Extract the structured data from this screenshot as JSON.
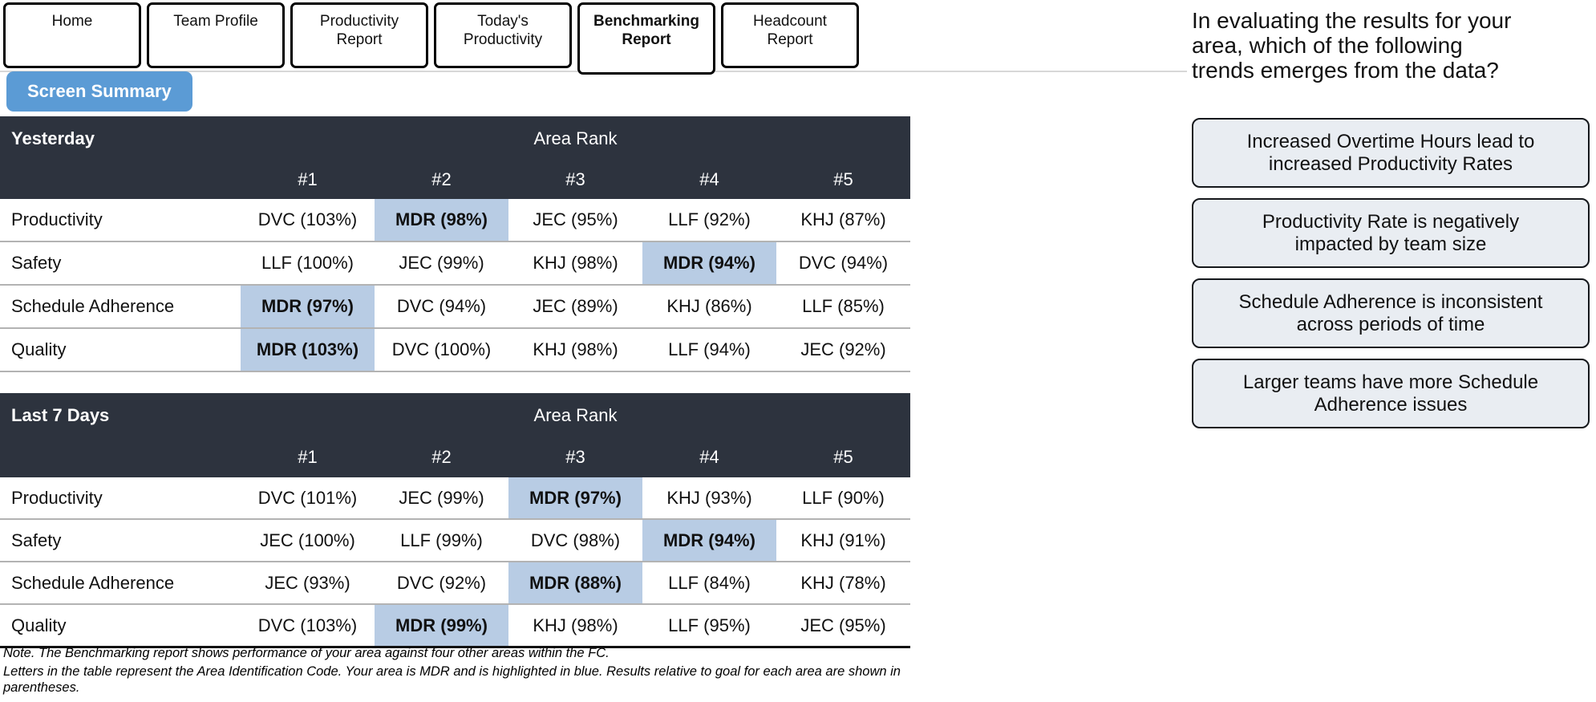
{
  "tabs": [
    {
      "label": "Home",
      "active": false
    },
    {
      "label": "Team Profile",
      "active": false
    },
    {
      "label": "Productivity Report",
      "active": false
    },
    {
      "label": "Today's Productivity",
      "active": false
    },
    {
      "label": "Benchmarking Report",
      "active": true
    },
    {
      "label": "Headcount Report",
      "active": false
    }
  ],
  "screen_summary_label": "Screen Summary",
  "tables": [
    {
      "title": "Yesterday",
      "area_rank_label": "Area Rank",
      "rank_headers": [
        "#1",
        "#2",
        "#3",
        "#4",
        "#5"
      ],
      "rows": [
        {
          "metric": "Productivity",
          "cells": [
            {
              "text": "DVC (103%)",
              "highlight": false
            },
            {
              "text": "MDR (98%)",
              "highlight": true
            },
            {
              "text": "JEC (95%)",
              "highlight": false
            },
            {
              "text": "LLF (92%)",
              "highlight": false
            },
            {
              "text": "KHJ (87%)",
              "highlight": false
            }
          ]
        },
        {
          "metric": "Safety",
          "cells": [
            {
              "text": "LLF (100%)",
              "highlight": false
            },
            {
              "text": "JEC (99%)",
              "highlight": false
            },
            {
              "text": "KHJ (98%)",
              "highlight": false
            },
            {
              "text": "MDR (94%)",
              "highlight": true
            },
            {
              "text": "DVC (94%)",
              "highlight": false
            }
          ]
        },
        {
          "metric": "Schedule Adherence",
          "cells": [
            {
              "text": "MDR (97%)",
              "highlight": true
            },
            {
              "text": "DVC (94%)",
              "highlight": false
            },
            {
              "text": "JEC (89%)",
              "highlight": false
            },
            {
              "text": "KHJ (86%)",
              "highlight": false
            },
            {
              "text": "LLF (85%)",
              "highlight": false
            }
          ]
        },
        {
          "metric": "Quality",
          "cells": [
            {
              "text": "MDR (103%)",
              "highlight": true
            },
            {
              "text": "DVC (100%)",
              "highlight": false
            },
            {
              "text": "KHJ (98%)",
              "highlight": false
            },
            {
              "text": "LLF (94%)",
              "highlight": false
            },
            {
              "text": "JEC (92%)",
              "highlight": false
            }
          ]
        }
      ]
    },
    {
      "title": "Last 7 Days",
      "area_rank_label": "Area Rank",
      "rank_headers": [
        "#1",
        "#2",
        "#3",
        "#4",
        "#5"
      ],
      "rows": [
        {
          "metric": "Productivity",
          "cells": [
            {
              "text": "DVC (101%)",
              "highlight": false
            },
            {
              "text": "JEC (99%)",
              "highlight": false
            },
            {
              "text": "MDR (97%)",
              "highlight": true
            },
            {
              "text": "KHJ (93%)",
              "highlight": false
            },
            {
              "text": "LLF (90%)",
              "highlight": false
            }
          ]
        },
        {
          "metric": "Safety",
          "cells": [
            {
              "text": "JEC (100%)",
              "highlight": false
            },
            {
              "text": "LLF (99%)",
              "highlight": false
            },
            {
              "text": "DVC (98%)",
              "highlight": false
            },
            {
              "text": "MDR (94%)",
              "highlight": true
            },
            {
              "text": "KHJ (91%)",
              "highlight": false
            }
          ]
        },
        {
          "metric": "Schedule Adherence",
          "cells": [
            {
              "text": "JEC (93%)",
              "highlight": false
            },
            {
              "text": "DVC (92%)",
              "highlight": false
            },
            {
              "text": "MDR (88%)",
              "highlight": true
            },
            {
              "text": "LLF (84%)",
              "highlight": false
            },
            {
              "text": "KHJ (78%)",
              "highlight": false
            }
          ]
        },
        {
          "metric": "Quality",
          "cells": [
            {
              "text": "DVC (103%)",
              "highlight": false
            },
            {
              "text": "MDR (99%)",
              "highlight": true
            },
            {
              "text": "KHJ (98%)",
              "highlight": false
            },
            {
              "text": "LLF (95%)",
              "highlight": false
            },
            {
              "text": "JEC (95%)",
              "highlight": false
            }
          ]
        }
      ]
    }
  ],
  "note": {
    "line1": "Note. The Benchmarking report shows performance of your area against four other areas within the FC.",
    "line2": "Letters in the table represent the Area Identification Code. Your area is MDR and is highlighted in blue. Results relative to goal for each area are shown in parentheses."
  },
  "question_lines": [
    "In evaluating the results for your",
    "area, which of the following",
    "trends emerges from the data?"
  ],
  "options": [
    "Increased Overtime Hours lead to increased Productivity Rates",
    "Productivity Rate is negatively impacted by team size",
    "Schedule Adherence is inconsistent across periods of time",
    "Larger teams have more Schedule Adherence issues"
  ],
  "colors": {
    "accent_blue": "#5b9bd5",
    "table_header_bg": "#2d333e",
    "highlight_blue": "#b8cce4",
    "option_bg": "#e9edf2"
  }
}
